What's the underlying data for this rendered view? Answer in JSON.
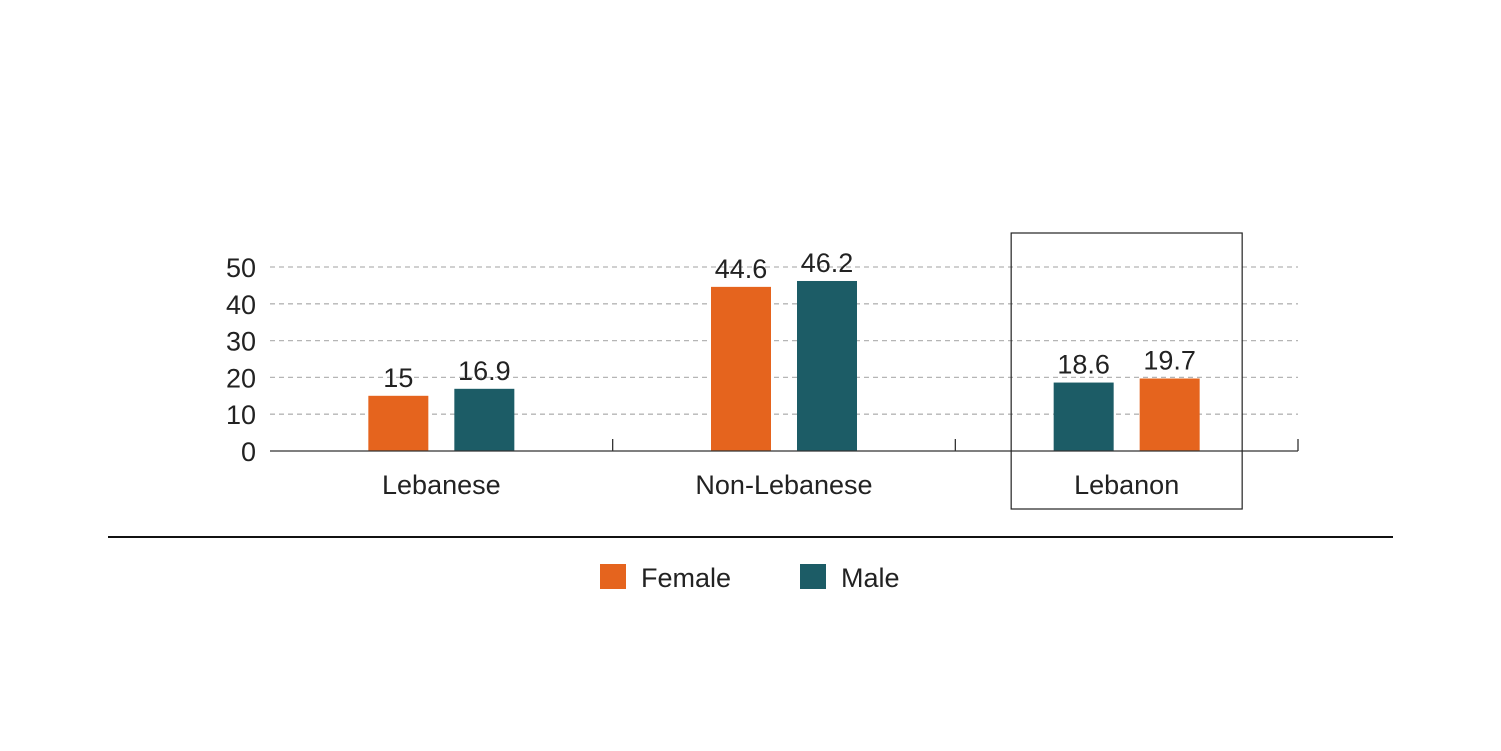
{
  "chart_data": {
    "type": "bar",
    "categories": [
      "Lebanese",
      "Non-Lebanese",
      "Lebanon"
    ],
    "series": [
      {
        "name": "Female",
        "color": "#e5641e",
        "values": [
          15,
          44.6,
          19.7
        ]
      },
      {
        "name": "Male",
        "color": "#1c5c66",
        "values": [
          16.9,
          46.2,
          18.6
        ]
      }
    ],
    "bar_order": [
      [
        "Female",
        "Male"
      ],
      [
        "Female",
        "Male"
      ],
      [
        "Male",
        "Female"
      ]
    ],
    "data_labels": [
      [
        "15",
        "16.9"
      ],
      [
        "44.6",
        "46.2"
      ],
      [
        "18.6",
        "19.7"
      ]
    ],
    "highlighted_category": "Lebanon",
    "y_ticks": [
      "0",
      "10",
      "20",
      "30",
      "40",
      "50"
    ],
    "ylim": [
      0,
      50
    ],
    "grid": true,
    "legend": {
      "position": "bottom",
      "items": [
        "Female",
        "Male"
      ]
    }
  }
}
